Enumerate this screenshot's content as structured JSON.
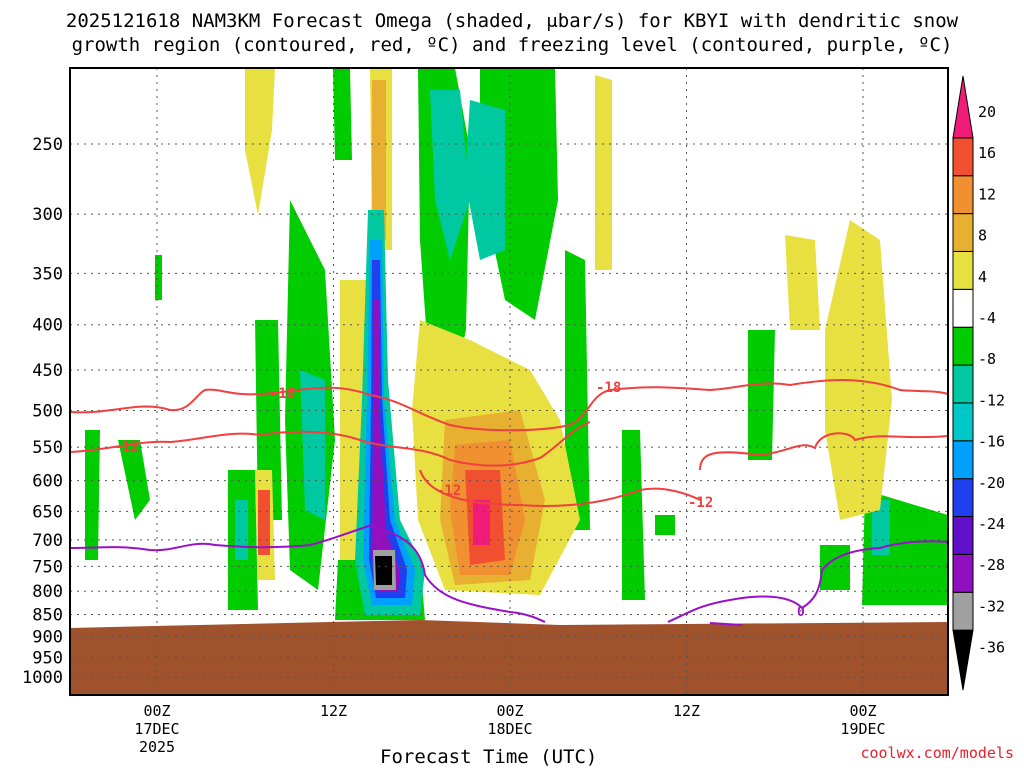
{
  "chart_data": {
    "type": "heatmap",
    "title_line1": "2025121618 NAM3KM Forecast Omega (shaded, μbar/s) for KBYI with dendritic snow",
    "title_line2": "growth region (contoured, red, ºC) and freezing level (contoured, purple, ºC)",
    "xlabel": "Forecast Time (UTC)",
    "credit": "coolwx.com/models",
    "y_ticks": [
      "250",
      "300",
      "350",
      "400",
      "450",
      "500",
      "550",
      "600",
      "650",
      "700",
      "750",
      "800",
      "850",
      "900",
      "950",
      "1000"
    ],
    "x_ticks": [
      {
        "line1": "00Z",
        "line2": "17DEC",
        "line3": "2025"
      },
      {
        "line1": "12Z",
        "line2": "",
        "line3": ""
      },
      {
        "line1": "00Z",
        "line2": "18DEC",
        "line3": ""
      },
      {
        "line1": "12Z",
        "line2": "",
        "line3": ""
      },
      {
        "line1": "00Z",
        "line2": "19DEC",
        "line3": ""
      }
    ],
    "colorbar_labels": [
      "20",
      "16",
      "12",
      "8",
      "4",
      "-4",
      "-8",
      "-12",
      "-16",
      "-20",
      "-24",
      "-28",
      "-32",
      "-36"
    ],
    "contour_labels": {
      "dgz_upper": "-18",
      "dgz_lower": "-12",
      "freezing": "0"
    },
    "colors": {
      "ground": "#a0522d",
      "dgz_contour": "#f04040",
      "freezing_contour": "#9a10c8"
    }
  }
}
